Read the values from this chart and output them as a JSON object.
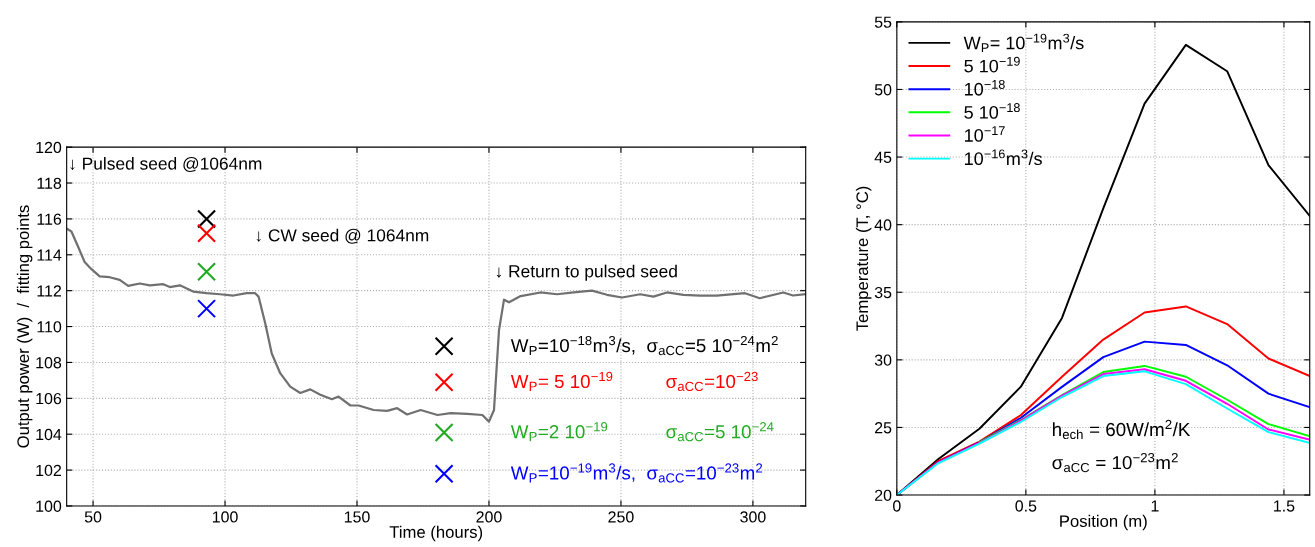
{
  "chart_data": [
    {
      "type": "line",
      "xlabel": "Time (hours)",
      "ylabel": "Output power (W)  /  fitting points",
      "xlim": [
        40,
        320
      ],
      "xticks": [
        50,
        100,
        150,
        200,
        250,
        300
      ],
      "ylim": [
        100,
        120
      ],
      "yticks": [
        100,
        102,
        104,
        106,
        108,
        110,
        112,
        114,
        116,
        118,
        120
      ],
      "grid": true,
      "line_style": "solid",
      "series": [
        {
          "type": "line",
          "color": "#707070",
          "x": [
            40.1,
            41.8,
            44.3,
            46.8,
            49.4,
            52.5,
            56.3,
            60.1,
            63.3,
            67.7,
            71.5,
            76.6,
            79.1,
            82.9,
            87.9,
            93.0,
            98.1,
            103.2,
            108.2,
            111.4,
            112.7,
            115.2,
            117.7,
            120.9,
            124.7,
            128.5,
            132.3,
            136.1,
            140.5,
            143.0,
            147.5,
            150.6,
            156.3,
            161.4,
            165.2,
            169.0,
            174.1,
            180.5,
            185.5,
            191.8,
            197.5,
            200,
            201.9,
            203.8,
            205.7,
            207.6,
            212,
            219.5,
            225.8,
            232.1,
            239,
            244.7,
            250.4,
            257.3,
            262.3,
            267.4,
            273.7,
            280,
            286.3,
            297,
            302.6,
            311.5,
            315.2,
            319.6
          ],
          "values": [
            115.45,
            115.3,
            114.46,
            113.6,
            113.2,
            112.8,
            112.75,
            112.6,
            112.27,
            112.4,
            112.3,
            112.36,
            112.2,
            112.3,
            111.95,
            111.86,
            111.8,
            111.73,
            111.86,
            111.86,
            111.67,
            110.2,
            108.5,
            107.4,
            106.65,
            106.3,
            106.5,
            106.2,
            105.95,
            106.1,
            105.6,
            105.6,
            105.35,
            105.3,
            105.45,
            105.1,
            105.35,
            105.07,
            105.17,
            105.13,
            105.07,
            104.7,
            105.35,
            109.8,
            111.5,
            111.35,
            111.7,
            111.9,
            111.8,
            111.9,
            112.0,
            111.77,
            111.62,
            111.8,
            111.67,
            111.9,
            111.77,
            111.73,
            111.73,
            111.86,
            111.58,
            111.9,
            111.73,
            111.8
          ]
        },
        {
          "type": "scatter",
          "marker": "cross",
          "name": "W$_{P}$=10$^{−18}$m$^{3}$/s,  σ$_{aCC}$=5 10$^{−24}$m$^{2}$",
          "color": "#000000",
          "x": [
            93,
            183
          ],
          "values": [
            116.0,
            108.9
          ]
        },
        {
          "type": "scatter",
          "marker": "cross",
          "name": "W$_{P}$= 5 10$^{−19}$          σ$_{aCC}$=10$^{−23}$",
          "color": "#ff0000",
          "x": [
            93,
            183
          ],
          "values": [
            115.2,
            106.9
          ]
        },
        {
          "type": "scatter",
          "marker": "cross",
          "name": "W$_{P}$=2 10$^{−19}$           σ$_{aCC}$=5 10$^{−24}$",
          "color": "#22aa22",
          "x": [
            93,
            183
          ],
          "values": [
            113.05,
            104.1
          ]
        },
        {
          "type": "scatter",
          "marker": "cross",
          "name": "W$_{P}$=10$^{−19}$m$^{3}$/s,  σ$_{aCC}$=10$^{−23}$m$^{2}$",
          "color": "#0000ff",
          "x": [
            93,
            183
          ],
          "values": [
            111.0,
            101.8
          ]
        }
      ],
      "annotations": [
        "↓ Pulsed seed @1064nm",
        "↓ CW seed @ 1064nm",
        "↓ Return to pulsed seed"
      ]
    },
    {
      "type": "line",
      "xlabel": "Position (m)",
      "ylabel": "Temperature (T, °C)",
      "xlim": [
        0,
        1.6
      ],
      "xticks": [
        0,
        0.5,
        1,
        1.5
      ],
      "ylim": [
        20,
        55
      ],
      "yticks": [
        20,
        25,
        30,
        35,
        40,
        45,
        50,
        55
      ],
      "grid": true,
      "legend": "top left",
      "line_style": "solid",
      "x": [
        0,
        0.16,
        0.32,
        0.48,
        0.64,
        0.8,
        0.96,
        1.12,
        1.28,
        1.44,
        1.6
      ],
      "series": [
        {
          "name": "W$_{P}$= 10$^{−19}$m$^{3}$/s",
          "color": "#000000",
          "values": [
            20,
            22.65,
            24.9,
            28.0,
            33.1,
            41.2,
            48.95,
            53.3,
            51.35,
            44.4,
            40.65
          ]
        },
        {
          "name": "5 10$^{−19}$",
          "color": "#ff0000",
          "values": [
            20,
            22.5,
            23.95,
            25.9,
            28.75,
            31.5,
            33.5,
            33.95,
            32.65,
            30.1,
            28.8
          ]
        },
        {
          "name": "10$^{−18}$",
          "color": "#0000ff",
          "values": [
            20,
            22.4,
            23.9,
            25.7,
            28.0,
            30.2,
            31.35,
            31.1,
            29.6,
            27.5,
            26.5
          ]
        },
        {
          "name": "5 10$^{−18}$",
          "color": "#00ff00",
          "values": [
            null,
            null,
            23.9,
            25.55,
            27.4,
            29.1,
            29.55,
            28.75,
            27.05,
            25.25,
            24.35
          ]
        },
        {
          "name": "10$^{−17}$",
          "color": "#ff00ff",
          "values": [
            20,
            22.4,
            23.85,
            25.5,
            27.35,
            28.95,
            29.3,
            28.45,
            26.75,
            24.85,
            24.1
          ]
        },
        {
          "name": "10$^{−16}$m$^{3}$/s",
          "color": "#00ffff",
          "values": [
            20,
            22.35,
            23.8,
            25.4,
            27.25,
            28.8,
            29.15,
            28.2,
            26.4,
            24.65,
            23.85
          ]
        }
      ],
      "annotations": [
        "h$_{ech}$ = 60W/m$^{2}$/K",
        "σ$_{aCC}$ = 10$^{−23}$m$^{2}$"
      ]
    }
  ]
}
